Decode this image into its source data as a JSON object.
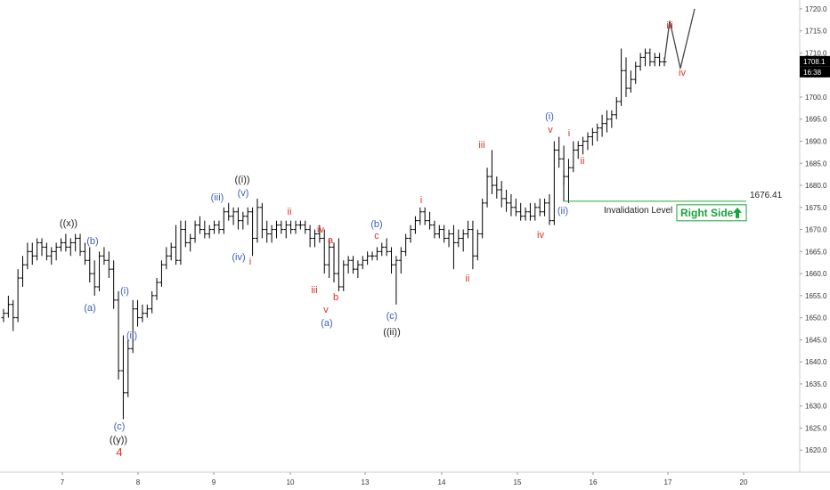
{
  "chart_data": {
    "type": "ohlc-bar",
    "ylim": [
      1615,
      1722
    ],
    "y_ticks": [
      "1620.0",
      "1625.0",
      "1630.0",
      "1635.0",
      "1640.0",
      "1645.0",
      "1650.0",
      "1655.0",
      "1660.0",
      "1665.0",
      "1670.0",
      "1675.0",
      "1680.0",
      "1685.0",
      "1690.0",
      "1695.0",
      "1700.0",
      "1705.0",
      "1710.0",
      "1715.0",
      "1720.0"
    ],
    "x_ticks": [
      "7",
      "8",
      "9",
      "10",
      "13",
      "14",
      "15",
      "16",
      "17",
      "20"
    ],
    "last_price": "1708.1",
    "countdown": "16:38",
    "colors": {
      "bars": "#000000",
      "blue_labels": "#3b5fc4",
      "red_labels": "#e0301e",
      "black_labels": "#222222",
      "invalidation": "#27a844",
      "right_side": "#1aa33a"
    },
    "invalidation": {
      "label": "Invalidation Level",
      "price": 1676.41,
      "price_label": "1676.41"
    },
    "right_side_label": "Right Side",
    "projection": [
      {
        "label": "iii",
        "y": 1718.5
      },
      {
        "label": "iv",
        "y": 1706.5
      },
      {
        "label": "",
        "y": 1720
      }
    ],
    "wave_labels": [
      {
        "text": "((x))",
        "color": "black",
        "price": 1669
      },
      {
        "text": "(b)",
        "color": "blue",
        "price": 1667
      },
      {
        "text": "(a)",
        "color": "blue",
        "price": 1652
      },
      {
        "text": "(i)",
        "color": "blue",
        "price": 1661
      },
      {
        "text": "(ii)",
        "color": "blue",
        "price": 1645
      },
      {
        "text": "(c)",
        "color": "blue",
        "price": 1625
      },
      {
        "text": "((y))",
        "color": "black",
        "price": 1621
      },
      {
        "text": "4",
        "color": "red",
        "price": 1617
      },
      {
        "text": "(iii)",
        "color": "blue",
        "price": 1678
      },
      {
        "text": "((i))",
        "color": "black",
        "price": 1684
      },
      {
        "text": "(v)",
        "color": "blue",
        "price": 1681
      },
      {
        "text": "(iv)",
        "color": "blue",
        "price": 1666
      },
      {
        "text": "i",
        "color": "red",
        "price": 1665
      },
      {
        "text": "ii",
        "color": "red",
        "price": 1674
      },
      {
        "text": "iv",
        "color": "red",
        "price": 1671
      },
      {
        "text": "a",
        "color": "red",
        "price": 1668
      },
      {
        "text": "iii",
        "color": "red",
        "price": 1660
      },
      {
        "text": "b",
        "color": "red",
        "price": 1658
      },
      {
        "text": "v",
        "color": "red",
        "price": 1655
      },
      {
        "text": "(a)",
        "color": "blue",
        "price": 1650
      },
      {
        "text": "(b)",
        "color": "blue",
        "price": 1671
      },
      {
        "text": "c",
        "color": "red",
        "price": 1668
      },
      {
        "text": "(c)",
        "color": "blue",
        "price": 1651
      },
      {
        "text": "((ii))",
        "color": "black",
        "price": 1646
      },
      {
        "text": "i",
        "color": "red",
        "price": 1677
      },
      {
        "text": "ii",
        "color": "red",
        "price": 1661
      },
      {
        "text": "iii",
        "color": "red",
        "price": 1691
      },
      {
        "text": "iv",
        "color": "red",
        "price": 1669
      },
      {
        "text": "(i)",
        "color": "blue",
        "price": 1698
      },
      {
        "text": "v",
        "color": "red",
        "price": 1693
      },
      {
        "text": "(ii)",
        "color": "blue",
        "price": 1673
      },
      {
        "text": "i",
        "color": "red",
        "price": 1691
      },
      {
        "text": "ii",
        "color": "red",
        "price": 1685
      },
      {
        "text": "iii",
        "color": "red",
        "price": 1717
      },
      {
        "text": "iv",
        "color": "red",
        "price": 1705
      }
    ],
    "bars": [
      [
        1650,
        1652,
        1649,
        1651
      ],
      [
        1651,
        1655,
        1650,
        1653
      ],
      [
        1653,
        1654,
        1647,
        1650
      ],
      [
        1650,
        1661,
        1649,
        1659
      ],
      [
        1659,
        1664,
        1657,
        1662
      ],
      [
        1662,
        1667,
        1661,
        1665
      ],
      [
        1665,
        1667,
        1662,
        1664
      ],
      [
        1664,
        1668,
        1663,
        1667
      ],
      [
        1667,
        1668,
        1664,
        1666
      ],
      [
        1666,
        1667,
        1663,
        1664
      ],
      [
        1664,
        1666,
        1662,
        1665
      ],
      [
        1665,
        1667,
        1663,
        1666
      ],
      [
        1666,
        1668,
        1665,
        1667
      ],
      [
        1667,
        1669,
        1665,
        1666
      ],
      [
        1666,
        1668,
        1664,
        1667
      ],
      [
        1667,
        1669,
        1665,
        1668
      ],
      [
        1668,
        1669,
        1664,
        1665
      ],
      [
        1665,
        1667,
        1662,
        1663
      ],
      [
        1663,
        1666,
        1658,
        1660
      ],
      [
        1660,
        1663,
        1655,
        1657
      ],
      [
        1657,
        1665,
        1656,
        1664
      ],
      [
        1664,
        1666,
        1662,
        1663
      ],
      [
        1663,
        1665,
        1659,
        1661
      ],
      [
        1661,
        1663,
        1652,
        1654
      ],
      [
        1654,
        1656,
        1636,
        1638
      ],
      [
        1638,
        1646,
        1627,
        1633
      ],
      [
        1633,
        1645,
        1632,
        1643
      ],
      [
        1643,
        1654,
        1642,
        1652
      ],
      [
        1652,
        1654,
        1648,
        1650
      ],
      [
        1650,
        1653,
        1649,
        1651
      ],
      [
        1651,
        1653,
        1650,
        1652
      ],
      [
        1652,
        1656,
        1651,
        1655
      ],
      [
        1655,
        1659,
        1654,
        1658
      ],
      [
        1658,
        1663,
        1657,
        1662
      ],
      [
        1662,
        1666,
        1661,
        1664
      ],
      [
        1664,
        1667,
        1663,
        1666
      ],
      [
        1666,
        1671,
        1662,
        1663
      ],
      [
        1663,
        1672,
        1662,
        1670
      ],
      [
        1670,
        1672,
        1666,
        1667
      ],
      [
        1667,
        1669,
        1665,
        1668
      ],
      [
        1668,
        1672,
        1667,
        1671
      ],
      [
        1671,
        1673,
        1669,
        1670
      ],
      [
        1670,
        1672,
        1668,
        1669
      ],
      [
        1669,
        1671,
        1668,
        1670
      ],
      [
        1670,
        1672,
        1669,
        1671
      ],
      [
        1671,
        1672,
        1669,
        1670
      ],
      [
        1670,
        1675,
        1669,
        1674
      ],
      [
        1674,
        1676,
        1672,
        1673
      ],
      [
        1673,
        1675,
        1671,
        1674
      ],
      [
        1674,
        1675,
        1670,
        1672
      ],
      [
        1672,
        1674,
        1670,
        1673
      ],
      [
        1673,
        1675,
        1671,
        1674
      ],
      [
        1674,
        1675,
        1664,
        1668
      ],
      [
        1668,
        1677,
        1667,
        1675
      ],
      [
        1675,
        1676,
        1668,
        1670
      ],
      [
        1670,
        1672,
        1667,
        1669
      ],
      [
        1669,
        1671,
        1667,
        1670
      ],
      [
        1670,
        1672,
        1668,
        1671
      ],
      [
        1671,
        1672,
        1669,
        1670
      ],
      [
        1670,
        1672,
        1668,
        1671
      ],
      [
        1671,
        1672,
        1669,
        1670
      ],
      [
        1670,
        1672,
        1669,
        1671
      ],
      [
        1671,
        1672,
        1670,
        1671
      ],
      [
        1671,
        1672,
        1669,
        1670
      ],
      [
        1670,
        1671,
        1666,
        1668
      ],
      [
        1668,
        1670,
        1666,
        1669
      ],
      [
        1669,
        1671,
        1667,
        1668
      ],
      [
        1668,
        1670,
        1660,
        1662
      ],
      [
        1662,
        1668,
        1659,
        1666
      ],
      [
        1666,
        1667,
        1658,
        1660
      ],
      [
        1660,
        1668,
        1656,
        1657
      ],
      [
        1657,
        1663,
        1656,
        1662
      ],
      [
        1662,
        1664,
        1660,
        1663
      ],
      [
        1663,
        1664,
        1660,
        1661
      ],
      [
        1661,
        1663,
        1659,
        1662
      ],
      [
        1662,
        1664,
        1661,
        1663
      ],
      [
        1663,
        1665,
        1662,
        1664
      ],
      [
        1664,
        1665,
        1663,
        1664
      ],
      [
        1664,
        1666,
        1663,
        1665
      ],
      [
        1665,
        1667,
        1664,
        1666
      ],
      [
        1666,
        1668,
        1664,
        1665
      ],
      [
        1665,
        1666,
        1660,
        1662
      ],
      [
        1662,
        1664,
        1653,
        1663
      ],
      [
        1663,
        1666,
        1660,
        1665
      ],
      [
        1665,
        1669,
        1664,
        1668
      ],
      [
        1668,
        1671,
        1667,
        1670
      ],
      [
        1670,
        1673,
        1669,
        1672
      ],
      [
        1672,
        1675,
        1671,
        1674
      ],
      [
        1674,
        1675,
        1671,
        1672
      ],
      [
        1672,
        1674,
        1670,
        1671
      ],
      [
        1671,
        1672,
        1668,
        1669
      ],
      [
        1669,
        1671,
        1668,
        1670
      ],
      [
        1670,
        1671,
        1667,
        1668
      ],
      [
        1668,
        1670,
        1666,
        1669
      ],
      [
        1669,
        1671,
        1661,
        1667
      ],
      [
        1667,
        1670,
        1666,
        1668
      ],
      [
        1668,
        1670,
        1665,
        1669
      ],
      [
        1669,
        1672,
        1668,
        1670
      ],
      [
        1670,
        1672,
        1661,
        1664
      ],
      [
        1664,
        1670,
        1663,
        1669
      ],
      [
        1669,
        1677,
        1668,
        1676
      ],
      [
        1676,
        1684,
        1675,
        1682
      ],
      [
        1682,
        1688,
        1678,
        1680
      ],
      [
        1680,
        1682,
        1677,
        1679
      ],
      [
        1679,
        1681,
        1675,
        1677
      ],
      [
        1677,
        1679,
        1674,
        1676
      ],
      [
        1676,
        1678,
        1673,
        1675
      ],
      [
        1675,
        1677,
        1673,
        1674
      ],
      [
        1674,
        1676,
        1672,
        1673
      ],
      [
        1673,
        1675,
        1672,
        1674
      ],
      [
        1674,
        1676,
        1672,
        1673
      ],
      [
        1673,
        1676,
        1672,
        1675
      ],
      [
        1675,
        1677,
        1673,
        1674
      ],
      [
        1674,
        1677,
        1673,
        1676
      ],
      [
        1676,
        1678,
        1671,
        1672
      ],
      [
        1672,
        1690,
        1671,
        1688
      ],
      [
        1688,
        1691,
        1684,
        1686
      ],
      [
        1686,
        1689,
        1680,
        1682
      ],
      [
        1682,
        1686,
        1676,
        1684
      ],
      [
        1684,
        1690,
        1683,
        1688
      ],
      [
        1688,
        1690,
        1686,
        1689
      ],
      [
        1689,
        1691,
        1687,
        1690
      ],
      [
        1690,
        1692,
        1688,
        1691
      ],
      [
        1691,
        1693,
        1689,
        1692
      ],
      [
        1692,
        1694,
        1690,
        1693
      ],
      [
        1693,
        1696,
        1691,
        1694
      ],
      [
        1694,
        1697,
        1692,
        1695
      ],
      [
        1695,
        1697,
        1693,
        1696
      ],
      [
        1696,
        1700,
        1695,
        1699
      ],
      [
        1699,
        1711,
        1698,
        1706
      ],
      [
        1706,
        1709,
        1700,
        1702
      ],
      [
        1702,
        1706,
        1701,
        1704
      ],
      [
        1704,
        1708,
        1703,
        1707
      ],
      [
        1707,
        1710,
        1706,
        1709
      ],
      [
        1709,
        1711,
        1707,
        1710
      ],
      [
        1710,
        1711,
        1707,
        1708
      ],
      [
        1708,
        1710,
        1707,
        1709
      ],
      [
        1709,
        1710,
        1707,
        1708
      ],
      [
        1708,
        1709,
        1707,
        1708
      ]
    ]
  }
}
